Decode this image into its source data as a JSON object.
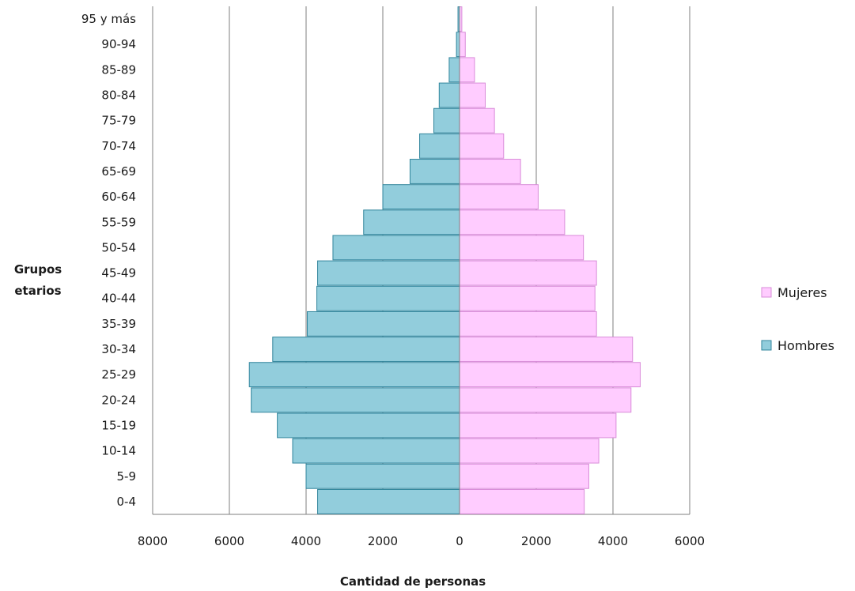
{
  "chart_data": {
    "type": "bar",
    "orientation": "horizontal",
    "subtype": "population-pyramid",
    "categories": [
      "0-4",
      "5-9",
      "10-14",
      "15-19",
      "20-24",
      "25-29",
      "30-34",
      "35-39",
      "40-44",
      "45-49",
      "50-54",
      "55-59",
      "60-64",
      "65-69",
      "70-74",
      "75-79",
      "80-84",
      "85-89",
      "90-94",
      "95 y más"
    ],
    "series": [
      {
        "name": "Mujeres",
        "side": "right",
        "color": "#FFCCFF",
        "border": "#D98CD9",
        "values": [
          3250,
          3370,
          3630,
          4080,
          4470,
          4710,
          4510,
          3570,
          3530,
          3570,
          3230,
          2740,
          2050,
          1590,
          1150,
          910,
          670,
          390,
          150,
          60
        ]
      },
      {
        "name": "Hombres",
        "side": "left",
        "color": "#92CDDC",
        "border": "#31859C",
        "values": [
          3700,
          4000,
          4350,
          4750,
          5430,
          5480,
          4870,
          3970,
          3720,
          3700,
          3300,
          2500,
          2000,
          1290,
          1040,
          670,
          530,
          270,
          80,
          40
        ]
      }
    ],
    "xlim": [
      -8000,
      6000
    ],
    "xticks": [
      -8000,
      -6000,
      -4000,
      -2000,
      0,
      2000,
      4000,
      6000
    ],
    "xtick_labels": [
      "8000",
      "6000",
      "4000",
      "2000",
      "0",
      "2000",
      "4000",
      "6000"
    ],
    "xlabel": "Cantidad de personas",
    "ylabel": [
      "Grupos",
      "etarios"
    ],
    "title": "",
    "grid": "vertical",
    "legend_position": "right"
  }
}
